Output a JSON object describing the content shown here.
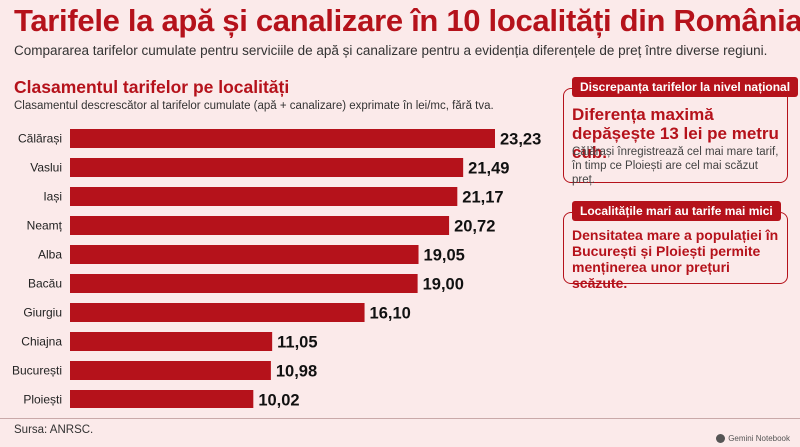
{
  "header": {
    "title": "Tarifele la apă și canalizare în 10 localități din România",
    "subtitle": "Compararea tarifelor cumulate pentru serviciile de apă și canalizare pentru a evidenția diferențele de preț între diverse regiuni."
  },
  "chart_section": {
    "heading": "Clasamentul tarifelor pe localități",
    "description": "Clasamentul descrescător al tarifelor cumulate (apă + canalizare) exprimate în lei/mc, fără tva."
  },
  "chart_data": {
    "type": "bar",
    "orientation": "horizontal",
    "categories": [
      "Călărași",
      "Vaslui",
      "Iași",
      "Neamț",
      "Alba",
      "Bacău",
      "Giurgiu",
      "Chiajna",
      "București",
      "Ploiești"
    ],
    "values": [
      23.23,
      21.49,
      21.17,
      20.72,
      19.05,
      19.0,
      16.1,
      11.05,
      10.98,
      10.02
    ],
    "value_labels": [
      "23,23",
      "21,49",
      "21,17",
      "20,72",
      "19,05",
      "19,00",
      "16,10",
      "11,05",
      "10,98",
      "10,02"
    ],
    "xlim": [
      0,
      23.23
    ],
    "grid": false,
    "bar_color": "#b5121b"
  },
  "cards": [
    {
      "tag": "Discrepanța tarifelor la nivel național",
      "headline": "Diferența maximă depășește 13 lei pe metru cub.",
      "body": "Călărași înregistrează cel mai mare tarif, în timp ce Ploiești are cel mai scăzut preț."
    },
    {
      "tag": "Localitățile mari au tarife mai mici",
      "headline": "Densitatea mare a populației în București și Ploiești permite menținerea unor prețuri scăzute."
    }
  ],
  "footer": {
    "source": "Sursa: ANRSC.",
    "brand": "Gemini Notebook"
  },
  "colors": {
    "accent": "#b5121b",
    "background": "#fbeaea"
  }
}
